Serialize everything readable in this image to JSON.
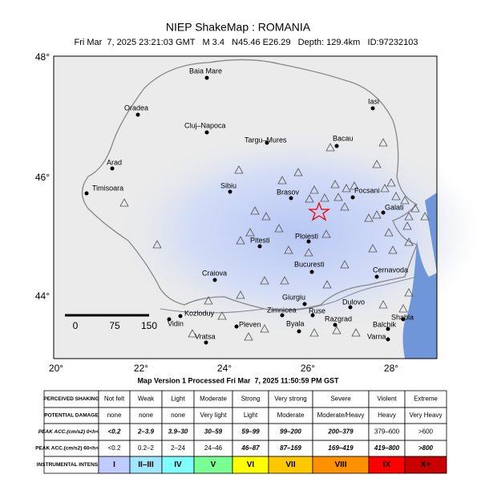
{
  "header": {
    "title": "NIEP ShakeMap : ROMANIA",
    "subtitle": "Fri Mar  7, 2025 23:21:03 GMT   M 3.4   N45.46 E26.29   Depth: 129.4km   ID:97232103"
  },
  "map": {
    "lat_labels": [
      "48°",
      "46°",
      "44°"
    ],
    "lon_labels": [
      "20°",
      "22°",
      "24°",
      "26°",
      "28°"
    ],
    "scale_labels": [
      "0",
      "75",
      "150"
    ],
    "cities": [
      "Baia Mare",
      "Oradea",
      "Cluj–Napoca",
      "Targu–Mures",
      "Iasi",
      "Bacau",
      "Arad",
      "Timisoara",
      "Sibiu",
      "Brasov",
      "Focsani",
      "Galati",
      "Ploiesti",
      "Pitesti",
      "Bucuresti",
      "Craiova",
      "Cernavoda",
      "Giurgiu",
      "Zimnicea",
      "Ruse",
      "Dulovo",
      "Kozloduy",
      "Vidin",
      "Razgrad",
      "Shabla",
      "Balchik",
      "Pleven",
      "Byala",
      "Vratsa",
      "Varna"
    ]
  },
  "footer": {
    "version": "Map Version 1 Processed Fri Mar  7, 2025 11:50:59 PM GST"
  },
  "table": {
    "rows": [
      [
        "PERCEIVED SHAKING",
        "Not felt",
        "Weak",
        "Light",
        "Moderate",
        "Strong",
        "Very strong",
        "Severe",
        "Violent",
        "Extreme"
      ],
      [
        "POTENTIAL DAMAGE",
        "none",
        "none",
        "none",
        "Very light",
        "Light",
        "Moderate",
        "Moderate/Heavy",
        "Heavy",
        "Very Heavy"
      ],
      [
        "PEAK ACC.(cm/s2) 0<h<60",
        "<0.2",
        "2–3.9",
        "3.9–30",
        "30–59",
        "59–99",
        "99–200",
        "200–379",
        "379–600",
        ">600"
      ],
      [
        "PEAK ACC.(cm/s2) 60<h<200",
        "<0.2",
        "0.2–2",
        "2–24",
        "24–46",
        "46–87",
        "87–169",
        "169–419",
        "419–800",
        ">800"
      ],
      [
        "INSTRUMENTAL INTENSITY",
        "I",
        "II–III",
        "IV",
        "V",
        "VI",
        "VII",
        "VIII",
        "IX",
        "X+"
      ]
    ]
  }
}
